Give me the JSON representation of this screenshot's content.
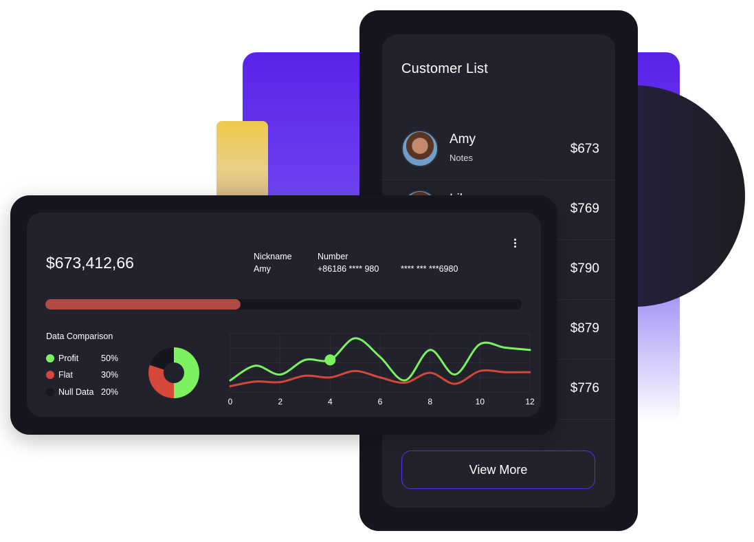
{
  "colors": {
    "accent_purple": "#5b2ff0",
    "profit_green": "#7cf25f",
    "flat_red": "#d4473a",
    "null_dark": "#16161f",
    "progress_red": "#b24942",
    "yellow": "#efc94a"
  },
  "customer_list": {
    "title": "Customer List",
    "customers": [
      {
        "name": "Amy",
        "note": "Notes",
        "amount": "$673"
      },
      {
        "name": "Lily",
        "note": "",
        "amount": "$769"
      },
      {
        "name": "",
        "note": "",
        "amount": "$790"
      },
      {
        "name": "",
        "note": "",
        "amount": "$879"
      },
      {
        "name": "",
        "note": "",
        "amount": "$776"
      }
    ],
    "view_more_label": "View More"
  },
  "dashboard": {
    "amount": "$673,412,66",
    "nickname_label": "Nickname",
    "nickname_value": "Amy",
    "number_label": "Number",
    "number_value": "+86186 **** 980",
    "card_value": "**** *** ***6980",
    "more_icon": "more-vertical-icon",
    "progress": 0.41,
    "data_comparison_title": "Data Comparison",
    "legend": [
      {
        "name": "Profit",
        "pct": "50%",
        "color": "#7cf25f"
      },
      {
        "name": "Flat",
        "pct": "30%",
        "color": "#d4473a"
      },
      {
        "name": "Null Data",
        "pct": "20%",
        "color": "#16161f"
      }
    ]
  },
  "chart_data": [
    {
      "type": "pie",
      "title": "",
      "categories": [
        "Profit",
        "Flat",
        "Null Data"
      ],
      "values": [
        50,
        30,
        20
      ],
      "colors": [
        "#7cf25f",
        "#d4473a",
        "#16161f"
      ]
    },
    {
      "type": "line",
      "title": "",
      "xlabel": "",
      "ylabel": "",
      "xlim": [
        0,
        12
      ],
      "ylim": [
        0,
        100
      ],
      "xticks": [
        "0",
        "2",
        "4",
        "6",
        "8",
        "10",
        "12"
      ],
      "grid": true,
      "series": [
        {
          "color": "#7cf25f",
          "x": [
            0,
            1,
            2,
            3,
            4,
            5,
            6,
            7,
            8,
            9,
            10,
            11,
            12
          ],
          "y": [
            20,
            45,
            30,
            55,
            55,
            92,
            60,
            20,
            72,
            30,
            82,
            76,
            72
          ]
        },
        {
          "color": "#d4473a",
          "x": [
            0,
            1,
            2,
            3,
            4,
            5,
            6,
            7,
            8,
            9,
            10,
            11,
            12
          ],
          "y": [
            10,
            18,
            17,
            28,
            25,
            36,
            25,
            16,
            33,
            14,
            36,
            34,
            34
          ]
        }
      ],
      "highlight_point": {
        "series": 0,
        "x": 4,
        "y": 55
      }
    }
  ]
}
